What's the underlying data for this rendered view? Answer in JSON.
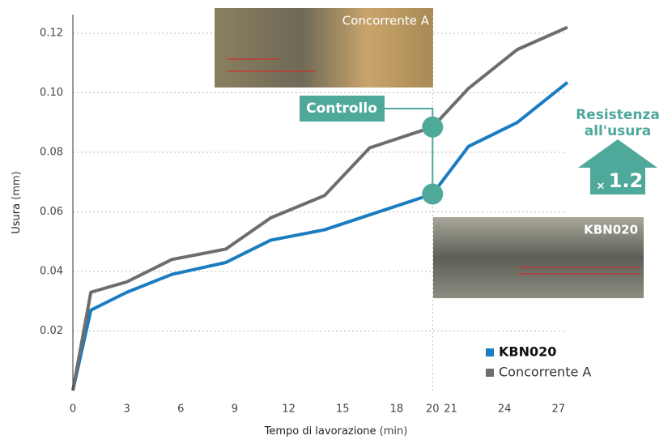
{
  "chart_data": {
    "type": "line",
    "x_label": "Tempo di lavorazione",
    "x_unit": "(min)",
    "y_label": "Usura",
    "y_unit": "(mm)",
    "x": [
      0,
      1,
      3,
      5.5,
      8.5,
      11,
      14,
      16.5,
      20,
      22,
      24.7,
      27.5
    ],
    "series": [
      {
        "name": "KBN020",
        "color": "#1a7cc1",
        "values": [
          0,
          0.027,
          0.033,
          0.039,
          0.043,
          0.0505,
          0.054,
          0.059,
          0.066,
          0.082,
          0.09,
          0.1035
        ]
      },
      {
        "name": "Concorrente A",
        "color": "#6d6d6d",
        "values": [
          0,
          0.033,
          0.0365,
          0.044,
          0.0475,
          0.058,
          0.0655,
          0.0815,
          0.0885,
          0.1015,
          0.1145,
          0.122
        ]
      }
    ],
    "xlim": [
      0,
      28
    ],
    "xticks": [
      0,
      3,
      6,
      9,
      12,
      15,
      18,
      20,
      21,
      24,
      27
    ],
    "ylim": [
      0,
      0.126
    ],
    "yticks": [
      0.02,
      0.04,
      0.06,
      0.08,
      {
        "value": 0.1,
        "label": "0.10"
      },
      0.12
    ],
    "grid": true,
    "legend": "lower right",
    "annotations": {
      "control": "Controllo",
      "photo_a": "Concorrente A",
      "photo_kbn": "KBN020",
      "resistance_1": "Resistenza",
      "resistance_2": "all'usura",
      "times": "×",
      "factor": "1.2"
    }
  }
}
